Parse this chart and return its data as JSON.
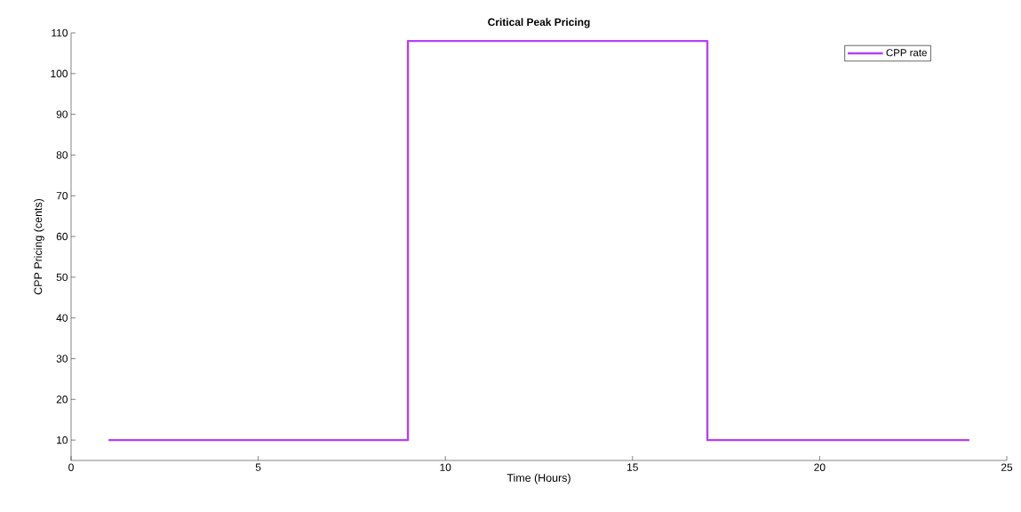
{
  "chart_data": {
    "type": "step",
    "title": "Critical Peak Pricing",
    "xlabel": "Time (Hours)",
    "ylabel": "CPP Pricing (cents)",
    "x": [
      1,
      2,
      3,
      4,
      5,
      6,
      7,
      8,
      9,
      10,
      11,
      12,
      13,
      14,
      15,
      16,
      17,
      18,
      19,
      20,
      21,
      22,
      23,
      24
    ],
    "series": [
      {
        "name": "CPP rate",
        "color": "#b341f7",
        "values": [
          10,
          10,
          10,
          10,
          10,
          10,
          10,
          10,
          108,
          108,
          108,
          108,
          108,
          108,
          108,
          108,
          10,
          10,
          10,
          10,
          10,
          10,
          10,
          10
        ]
      }
    ],
    "xlim": [
      0,
      25
    ],
    "xticks": [
      0,
      5,
      10,
      15,
      20,
      25
    ],
    "ylim": [
      5,
      110
    ],
    "yticks": [
      10,
      20,
      30,
      40,
      50,
      60,
      70,
      80,
      90,
      100,
      110
    ],
    "legend": "top right",
    "grid": false,
    "marker": "none",
    "line_style": "solid"
  }
}
